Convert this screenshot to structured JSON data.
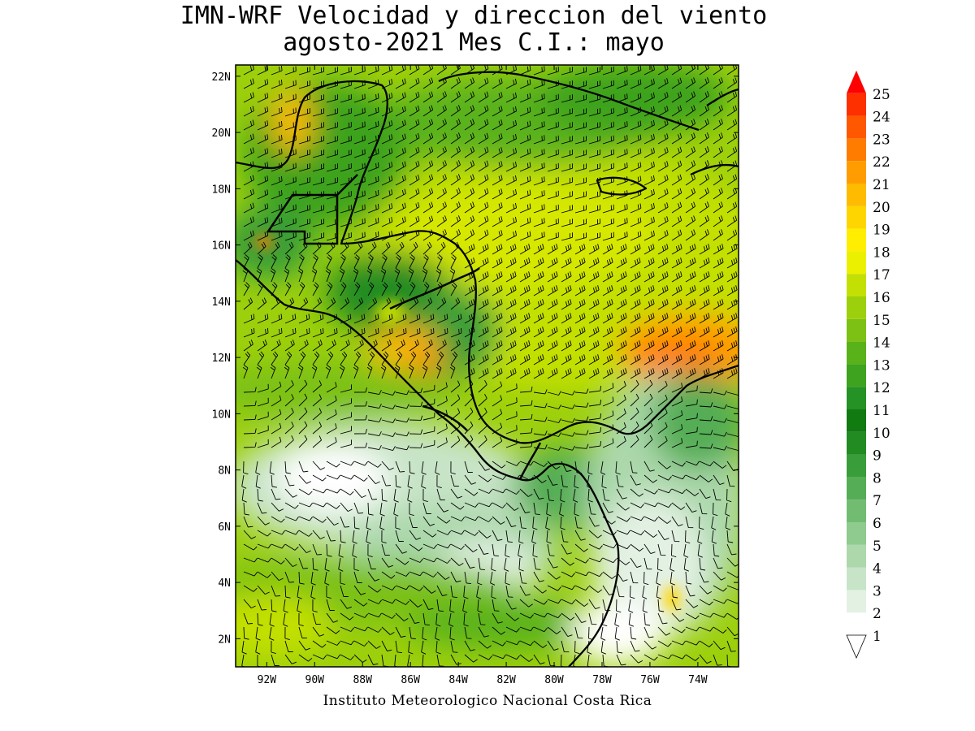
{
  "title_line1": "IMN-WRF Velocidad y direccion del viento",
  "title_line2": "agosto-2021 Mes C.I.: mayo",
  "credit": "Instituto Meteorologico Nacional Costa Rica",
  "map": {
    "lon_range": [
      -93.3,
      -72.3
    ],
    "lat_range": [
      1.0,
      22.4
    ],
    "x_ticks": [
      "92W",
      "90W",
      "88W",
      "86W",
      "84W",
      "82W",
      "80W",
      "78W",
      "76W",
      "74W"
    ],
    "x_tick_values": [
      -92,
      -90,
      -88,
      -86,
      -84,
      -82,
      -80,
      -78,
      -76,
      -74
    ],
    "y_ticks": [
      "2N",
      "4N",
      "6N",
      "8N",
      "10N",
      "12N",
      "14N",
      "16N",
      "18N",
      "20N",
      "22N"
    ],
    "y_tick_values": [
      2,
      4,
      6,
      8,
      10,
      12,
      14,
      16,
      18,
      20,
      22
    ],
    "variable": "wind speed with wind barbs"
  },
  "colorbar": {
    "labels": [
      "1",
      "2",
      "3",
      "4",
      "5",
      "6",
      "7",
      "8",
      "9",
      "10",
      "11",
      "12",
      "13",
      "14",
      "15",
      "16",
      "17",
      "18",
      "19",
      "20",
      "21",
      "22",
      "23",
      "24",
      "25"
    ],
    "colors": [
      "#ffffff",
      "#e3f1e3",
      "#c8e4c8",
      "#acd8ac",
      "#8fca8f",
      "#72bc72",
      "#55ad55",
      "#399e39",
      "#228c22",
      "#117a11",
      "#259225",
      "#3ea31e",
      "#5ab21a",
      "#7cc114",
      "#9dd00c",
      "#c3e004",
      "#eaf000",
      "#ffee00",
      "#ffd500",
      "#ffbb00",
      "#ff9d00",
      "#ff7c00",
      "#ff5800",
      "#ff3000",
      "#ff0000"
    ]
  }
}
